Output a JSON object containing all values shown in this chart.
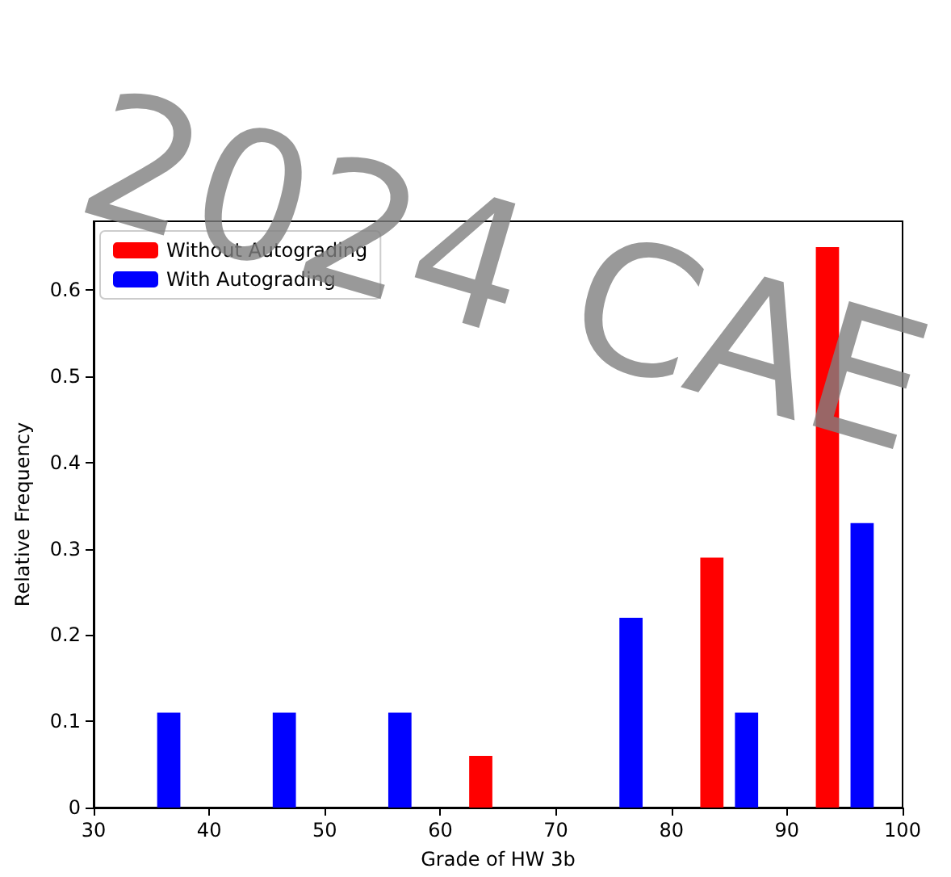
{
  "chart_data": {
    "type": "bar",
    "xlabel": "Grade of HW 3b",
    "ylabel": "Relative Frequency",
    "xlim": [
      30,
      100
    ],
    "xticks": [
      30,
      40,
      50,
      60,
      70,
      80,
      90,
      100
    ],
    "ylim": [
      0,
      0.68
    ],
    "yticks": [
      0,
      0.1,
      0.2,
      0.3,
      0.4,
      0.5,
      0.6
    ],
    "legend": "top left",
    "grid": false,
    "annotations": [
      "2024 CAE"
    ],
    "series": [
      {
        "name": "Without Autograding",
        "color": "#ff0000",
        "x": [
          63.5,
          83.5,
          93.5
        ],
        "values": [
          0.06,
          0.29,
          0.65
        ]
      },
      {
        "name": "With Autograding",
        "color": "#0000ff",
        "x": [
          36.5,
          46.5,
          56.5,
          76.5,
          86.5,
          96.5
        ],
        "values": [
          0.11,
          0.11,
          0.11,
          0.22,
          0.11,
          0.33
        ]
      }
    ]
  }
}
